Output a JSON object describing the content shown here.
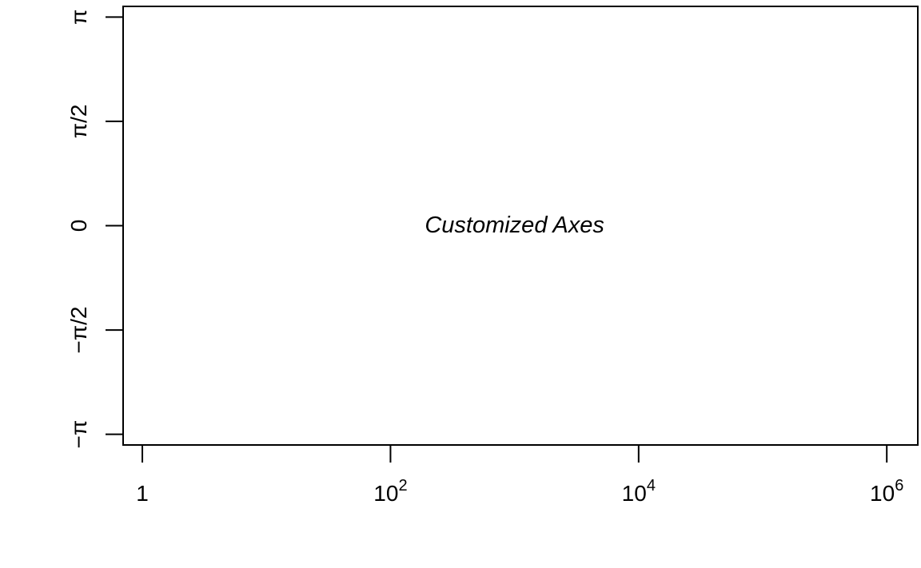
{
  "chart_data": {
    "type": "scatter",
    "title": "",
    "xlabel": "",
    "ylabel": "",
    "x_scale": "log10",
    "xlim": [
      0.7,
      1778279.41
    ],
    "ylim": [
      -3.3018,
      3.3018
    ],
    "x_ticks": [
      {
        "value": 1,
        "base": "1",
        "exp": ""
      },
      {
        "value": 100,
        "base": "10",
        "exp": "2"
      },
      {
        "value": 10000,
        "base": "10",
        "exp": "4"
      },
      {
        "value": 1000000,
        "base": "10",
        "exp": "6"
      }
    ],
    "y_ticks": [
      {
        "value": -3.141593,
        "label": "−π"
      },
      {
        "value": -1.570796,
        "label": "−π/2"
      },
      {
        "value": 0,
        "label": "0"
      },
      {
        "value": 1.570796,
        "label": "π/2"
      },
      {
        "value": 3.141593,
        "label": "π"
      }
    ],
    "series": [],
    "annotation": {
      "text": "Customized Axes",
      "x": 1000,
      "y": 0
    },
    "grid": false,
    "legend": "none"
  }
}
